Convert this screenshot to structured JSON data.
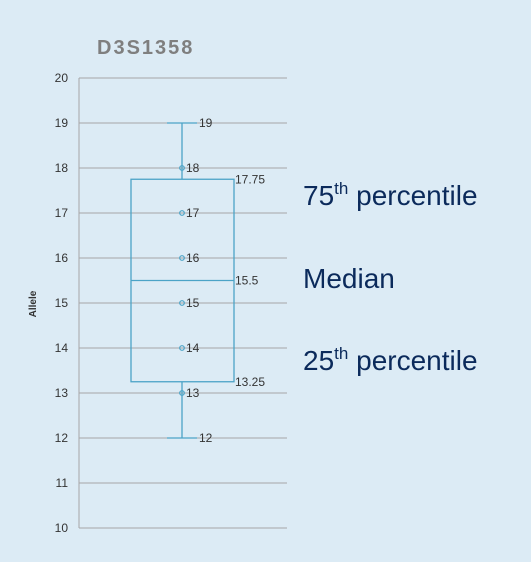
{
  "chart_data": {
    "type": "boxplot",
    "title": "D3S1358",
    "ylabel": "Allele",
    "ylim": [
      10,
      20
    ],
    "yticks": [
      20,
      19,
      18,
      17,
      16,
      15,
      14,
      13,
      12,
      11,
      10
    ],
    "box": {
      "min": 12,
      "q1": 13.25,
      "median": 15.5,
      "q3": 17.75,
      "max": 19
    },
    "box_labels": [
      {
        "value": 19,
        "label": "19"
      },
      {
        "value": 17.75,
        "label": "17.75"
      },
      {
        "value": 15.5,
        "label": "15.5"
      },
      {
        "value": 13.25,
        "label": "13.25"
      },
      {
        "value": 12,
        "label": "12"
      }
    ],
    "points": [
      {
        "value": 18,
        "label": "18"
      },
      {
        "value": 17,
        "label": "17"
      },
      {
        "value": 16,
        "label": "16"
      },
      {
        "value": 15,
        "label": "15"
      },
      {
        "value": 14,
        "label": "14"
      },
      {
        "value": 13,
        "label": "13"
      }
    ],
    "grid": true,
    "colors": {
      "box": "#4ba3c7",
      "grid": "#a6a6a6",
      "axis": "#a6a6a6"
    }
  },
  "annotations": {
    "p75": {
      "main": "75",
      "sup": "th",
      "rest": " percentile"
    },
    "median": {
      "text": "Median"
    },
    "p25": {
      "main": "25",
      "sup": "th",
      "rest": " percentile"
    }
  }
}
